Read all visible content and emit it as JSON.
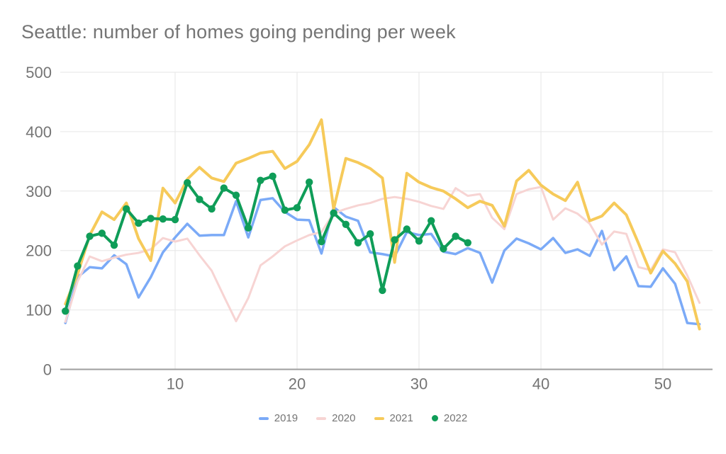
{
  "title": "Seattle: number of homes going pending per week",
  "colors": {
    "grid": "#e6e6e6",
    "axis_line": "#9e9e9e",
    "text": "#757575",
    "series_2019": "#7baaf7",
    "series_2020": "#f7d4d3",
    "series_2021": "#f6ca5a",
    "series_2022": "#0f9d58"
  },
  "chart_data": {
    "type": "line",
    "title": "Seattle: number of homes going pending per week",
    "xlabel": "",
    "ylabel": "",
    "x_unit": "week of year",
    "x_start_week": 1,
    "x_end_week": 53,
    "x_ticks": [
      10,
      20,
      30,
      40,
      50
    ],
    "y_ticks": [
      0,
      100,
      200,
      300,
      400,
      500
    ],
    "ylim": [
      0,
      500
    ],
    "grid": true,
    "legend_position": "bottom",
    "series": [
      {
        "name": "2019",
        "color": "#7baaf7",
        "marker": "none",
        "line_width": 3.5,
        "values": [
          78,
          155,
          172,
          170,
          192,
          177,
          121,
          155,
          197,
          222,
          245,
          225,
          226,
          226,
          283,
          222,
          285,
          288,
          265,
          252,
          251,
          195,
          273,
          257,
          250,
          197,
          194,
          190,
          231,
          226,
          228,
          198,
          194,
          204,
          196,
          146,
          200,
          220,
          212,
          202,
          221,
          196,
          202,
          191,
          233,
          167,
          190,
          140,
          139,
          170,
          144,
          78,
          76
        ]
      },
      {
        "name": "2020",
        "color": "#f7d4d3",
        "marker": "none",
        "line_width": 3,
        "values": [
          80,
          148,
          190,
          182,
          188,
          193,
          196,
          202,
          221,
          215,
          220,
          192,
          166,
          123,
          81,
          120,
          175,
          190,
          207,
          217,
          226,
          231,
          263,
          270,
          276,
          280,
          287,
          290,
          287,
          282,
          275,
          270,
          305,
          292,
          295,
          255,
          236,
          295,
          303,
          307,
          252,
          271,
          262,
          245,
          210,
          232,
          228,
          172,
          167,
          202,
          197,
          158,
          112
        ]
      },
      {
        "name": "2021",
        "color": "#f6ca5a",
        "marker": "none",
        "line_width": 4,
        "values": [
          110,
          160,
          226,
          265,
          252,
          280,
          220,
          183,
          305,
          280,
          320,
          340,
          322,
          316,
          347,
          355,
          364,
          367,
          338,
          350,
          378,
          420,
          270,
          355,
          348,
          338,
          322,
          180,
          330,
          315,
          306,
          300,
          287,
          272,
          283,
          276,
          241,
          317,
          335,
          310,
          295,
          284,
          315,
          250,
          258,
          280,
          260,
          212,
          162,
          199,
          178,
          148,
          68
        ]
      },
      {
        "name": "2022",
        "color": "#0f9d58",
        "marker": "circle",
        "line_width": 4,
        "values": [
          98,
          174,
          224,
          229,
          209,
          270,
          246,
          254,
          253,
          252,
          314,
          286,
          270,
          305,
          293,
          238,
          318,
          325,
          268,
          272,
          315,
          215,
          263,
          244,
          213,
          228,
          133,
          218,
          236,
          216,
          250,
          203,
          224,
          213
        ]
      }
    ]
  }
}
